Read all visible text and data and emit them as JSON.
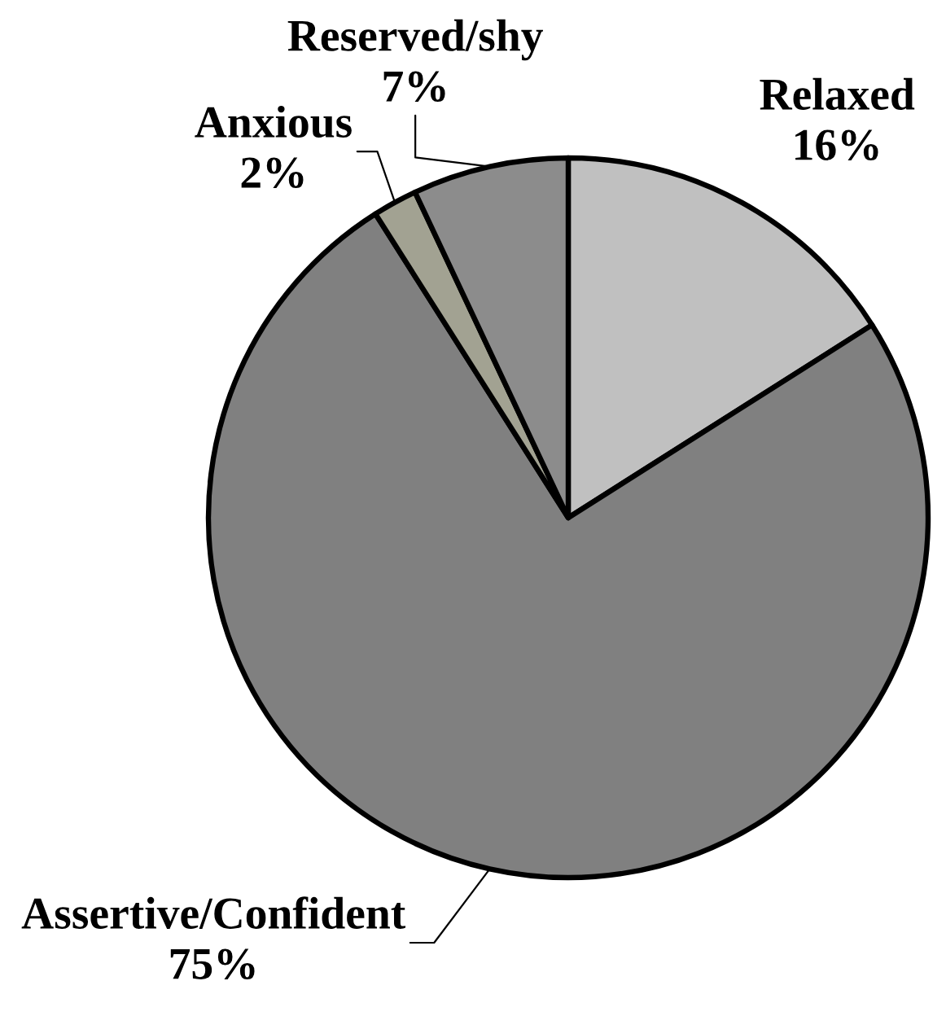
{
  "chart_data": {
    "type": "pie",
    "categories": [
      "Relaxed",
      "Assertive/Confident",
      "Anxious",
      "Reserved/shy"
    ],
    "values": [
      16,
      75,
      2,
      7
    ],
    "colors": [
      "#c0c0c0",
      "#808080",
      "#a2a292",
      "#8c8c8c"
    ],
    "value_labels": [
      "16%",
      "75%",
      "2%",
      "7%"
    ]
  }
}
